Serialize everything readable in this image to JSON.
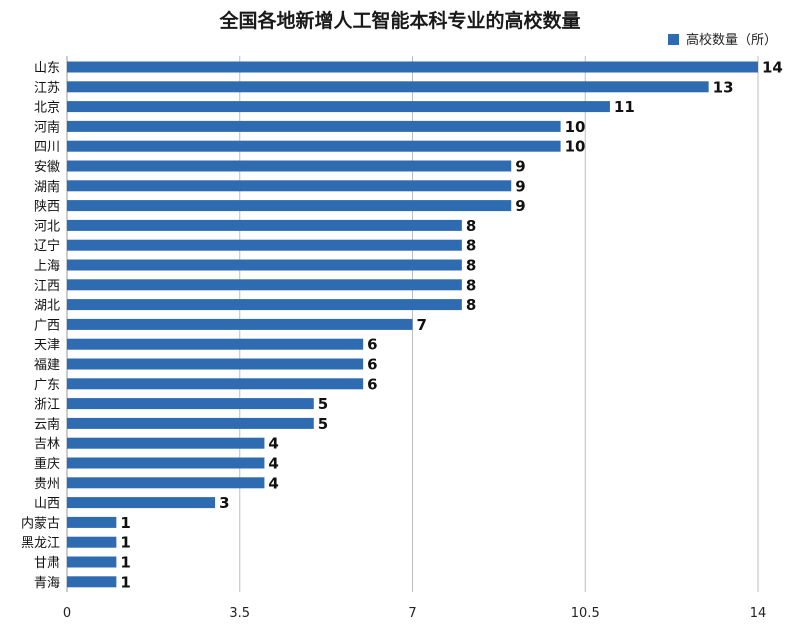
{
  "chart_data": {
    "type": "bar",
    "orientation": "horizontal",
    "title": "全国各地新增人工智能本科专业的高校数量",
    "xlabel": "",
    "ylabel": "",
    "categories": [
      "山东",
      "江苏",
      "北京",
      "河南",
      "四川",
      "安徽",
      "湖南",
      "陕西",
      "河北",
      "辽宁",
      "上海",
      "江西",
      "湖北",
      "广西",
      "天津",
      "福建",
      "广东",
      "浙江",
      "云南",
      "吉林",
      "重庆",
      "贵州",
      "山西",
      "内蒙古",
      "黑龙江",
      "甘肃",
      "青海"
    ],
    "series": [
      {
        "name": "高校数量（所）",
        "values": [
          14,
          13,
          11,
          10,
          10,
          9,
          9,
          9,
          8,
          8,
          8,
          8,
          8,
          7,
          6,
          6,
          6,
          5,
          5,
          4,
          4,
          4,
          3,
          1,
          1,
          1,
          1
        ]
      }
    ],
    "xlim": [
      0,
      14
    ],
    "xticks": [
      0,
      3.5,
      7,
      10.5,
      14
    ],
    "xtick_labels": [
      "0",
      "3.5",
      "7",
      "10.5",
      "14"
    ],
    "grid": "vertical",
    "legend_position": "top-right",
    "bar_color": "#2e6bb0"
  }
}
